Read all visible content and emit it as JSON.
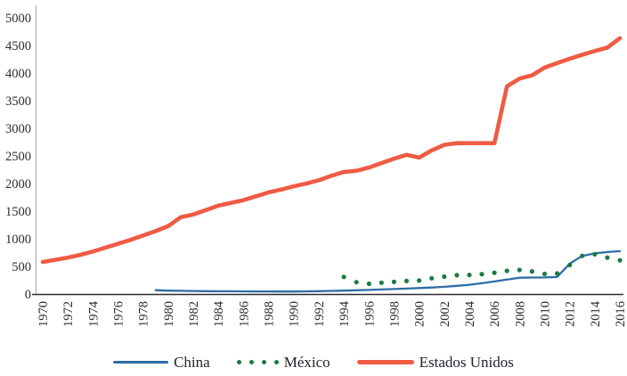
{
  "axes": {
    "y_axis_color": "#a9a9a9",
    "x_axis_color": "#2a2a30",
    "tick_label_color": "#2c2c34"
  },
  "legend": {
    "items": [
      {
        "label": "China",
        "color": "#2e6ca6",
        "swatch": "line"
      },
      {
        "label": "México",
        "color": "#1b7b43",
        "swatch": "dots"
      },
      {
        "label": "Estados Unidos",
        "color": "#ef5b43",
        "swatch": "thick-line"
      }
    ]
  },
  "chart_data": {
    "type": "line",
    "title": "",
    "xlabel": "",
    "ylabel": "",
    "xlim": [
      1970,
      2016
    ],
    "ylim": [
      0,
      5000
    ],
    "grid": false,
    "legend_position": "bottom",
    "x_ticks": [
      1970,
      1972,
      1974,
      1976,
      1978,
      1980,
      1982,
      1984,
      1986,
      1988,
      1990,
      1992,
      1994,
      1996,
      1998,
      2000,
      2002,
      2004,
      2006,
      2008,
      2010,
      2012,
      2014,
      2016
    ],
    "y_ticks": [
      0,
      500,
      1000,
      1500,
      2000,
      2500,
      3000,
      3500,
      4000,
      4500,
      5000
    ],
    "series": [
      {
        "name": "China",
        "style": "line",
        "color": "#2e6ca6",
        "width": 2.3,
        "points": [
          [
            1979,
            70
          ],
          [
            1980,
            62
          ],
          [
            1981,
            58
          ],
          [
            1982,
            55
          ],
          [
            1983,
            52
          ],
          [
            1984,
            50
          ],
          [
            1985,
            50
          ],
          [
            1986,
            48
          ],
          [
            1987,
            47
          ],
          [
            1988,
            46
          ],
          [
            1989,
            45
          ],
          [
            1990,
            45
          ],
          [
            1991,
            48
          ],
          [
            1992,
            52
          ],
          [
            1993,
            57
          ],
          [
            1994,
            62
          ],
          [
            1995,
            68
          ],
          [
            1996,
            75
          ],
          [
            1997,
            82
          ],
          [
            1998,
            90
          ],
          [
            1999,
            98
          ],
          [
            2000,
            108
          ],
          [
            2001,
            118
          ],
          [
            2002,
            130
          ],
          [
            2003,
            148
          ],
          [
            2004,
            168
          ],
          [
            2005,
            195
          ],
          [
            2006,
            228
          ],
          [
            2007,
            262
          ],
          [
            2008,
            295
          ],
          [
            2009,
            298
          ],
          [
            2010,
            300
          ],
          [
            2011,
            310
          ],
          [
            2012,
            550
          ],
          [
            2013,
            690
          ],
          [
            2014,
            735
          ],
          [
            2015,
            760
          ],
          [
            2016,
            775
          ]
        ]
      },
      {
        "name": "México",
        "style": "scatter",
        "color": "#1b7b43",
        "radius": 2.6,
        "points": [
          [
            1994,
            310
          ],
          [
            1995,
            215
          ],
          [
            1996,
            185
          ],
          [
            1997,
            205
          ],
          [
            1998,
            220
          ],
          [
            1999,
            235
          ],
          [
            2000,
            245
          ],
          [
            2001,
            285
          ],
          [
            2002,
            315
          ],
          [
            2003,
            340
          ],
          [
            2004,
            345
          ],
          [
            2005,
            360
          ],
          [
            2006,
            385
          ],
          [
            2007,
            420
          ],
          [
            2008,
            435
          ],
          [
            2009,
            410
          ],
          [
            2010,
            365
          ],
          [
            2011,
            372
          ],
          [
            2012,
            525
          ],
          [
            2013,
            690
          ],
          [
            2014,
            720
          ],
          [
            2015,
            660
          ],
          [
            2016,
            610
          ]
        ]
      },
      {
        "name": "Estados Unidos",
        "style": "line",
        "color": "#ef5b43",
        "width": 4.6,
        "points": [
          [
            1970,
            580
          ],
          [
            1971,
            620
          ],
          [
            1972,
            660
          ],
          [
            1973,
            710
          ],
          [
            1974,
            770
          ],
          [
            1975,
            840
          ],
          [
            1976,
            910
          ],
          [
            1977,
            980
          ],
          [
            1978,
            1060
          ],
          [
            1979,
            1140
          ],
          [
            1980,
            1230
          ],
          [
            1981,
            1390
          ],
          [
            1982,
            1440
          ],
          [
            1983,
            1520
          ],
          [
            1984,
            1600
          ],
          [
            1985,
            1650
          ],
          [
            1986,
            1700
          ],
          [
            1987,
            1770
          ],
          [
            1988,
            1840
          ],
          [
            1989,
            1890
          ],
          [
            1990,
            1950
          ],
          [
            1991,
            2000
          ],
          [
            1992,
            2060
          ],
          [
            1993,
            2140
          ],
          [
            1994,
            2210
          ],
          [
            1995,
            2230
          ],
          [
            1996,
            2290
          ],
          [
            1997,
            2370
          ],
          [
            1998,
            2450
          ],
          [
            1999,
            2520
          ],
          [
            2000,
            2470
          ],
          [
            2001,
            2600
          ],
          [
            2002,
            2700
          ],
          [
            2003,
            2730
          ],
          [
            2004,
            2730
          ],
          [
            2005,
            2730
          ],
          [
            2006,
            2730
          ],
          [
            2007,
            3760
          ],
          [
            2008,
            3900
          ],
          [
            2009,
            3960
          ],
          [
            2010,
            4100
          ],
          [
            2011,
            4180
          ],
          [
            2012,
            4260
          ],
          [
            2013,
            4330
          ],
          [
            2014,
            4400
          ],
          [
            2015,
            4460
          ],
          [
            2016,
            4630
          ]
        ]
      }
    ]
  }
}
